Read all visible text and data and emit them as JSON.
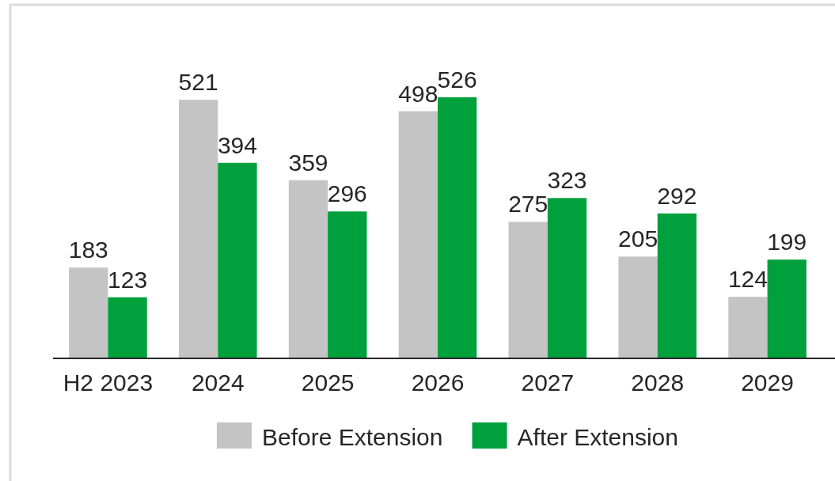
{
  "chart_data": {
    "type": "bar",
    "categories": [
      "H2 2023",
      "2024",
      "2025",
      "2026",
      "2027",
      "2028",
      "2029"
    ],
    "series": [
      {
        "name": "Before Extension",
        "color": "#c4c4c4",
        "values": [
          183,
          521,
          359,
          498,
          275,
          205,
          124
        ]
      },
      {
        "name": "After Extension",
        "color": "#00a03c",
        "values": [
          123,
          394,
          296,
          526,
          323,
          292,
          199
        ]
      }
    ],
    "tick_labels": "x",
    "data_labels": true,
    "legend": "bottom"
  }
}
